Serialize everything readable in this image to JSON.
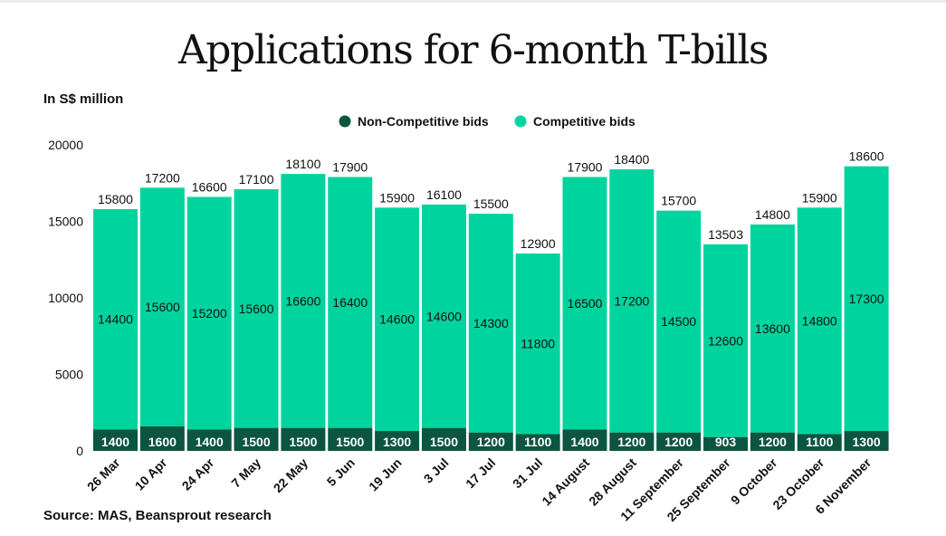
{
  "chart_data": {
    "type": "bar",
    "stacked": true,
    "title": "Applications for 6-month T-bills",
    "ylabel": "In S$ million",
    "source": "Source: MAS, Beansprout research",
    "ylim": [
      0,
      20000
    ],
    "yticks": [
      0,
      5000,
      10000,
      15000,
      20000
    ],
    "categories": [
      "26 Mar",
      "10 Apr",
      "24 Apr",
      "7 May",
      "22 May",
      "5 Jun",
      "19 Jun",
      "3 Jul",
      "17 Jul",
      "31 Jul",
      "14 August",
      "28 August",
      "11 September",
      "25 September",
      "9 October",
      "23 October",
      "6 November"
    ],
    "series": [
      {
        "name": "Non-Competitive bids",
        "color": "#0b5541",
        "values": [
          1400,
          1600,
          1400,
          1500,
          1500,
          1500,
          1300,
          1500,
          1200,
          1100,
          1400,
          1200,
          1200,
          903,
          1200,
          1100,
          1300
        ]
      },
      {
        "name": "Competitive bids",
        "color": "#00d49e",
        "values": [
          14400,
          15600,
          15200,
          15600,
          16600,
          16400,
          14600,
          14600,
          14300,
          11800,
          16500,
          17200,
          14500,
          12600,
          13600,
          14800,
          17300
        ]
      }
    ],
    "totals": [
      15800,
      17200,
      16600,
      17100,
      18100,
      17900,
      15900,
      16100,
      15500,
      12900,
      17900,
      18400,
      15700,
      13503,
      14800,
      15900,
      18600
    ],
    "legend_position": "top-center"
  }
}
